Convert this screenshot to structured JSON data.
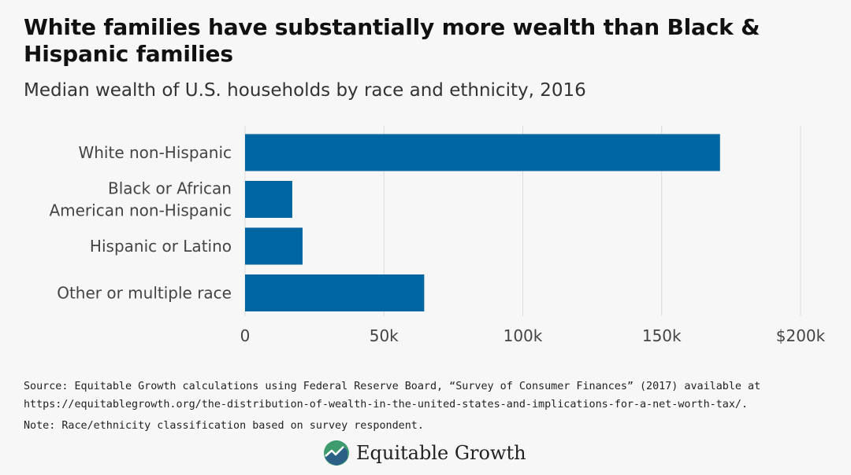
{
  "header": {
    "title": "White families have substantially more wealth than Black & Hispanic families",
    "subtitle": "Median wealth of U.S. households by race and ethnicity, 2016"
  },
  "chart_data": {
    "type": "bar",
    "orientation": "horizontal",
    "categories": [
      [
        "White non-Hispanic"
      ],
      [
        "Black or African",
        "American non-Hispanic"
      ],
      [
        "Hispanic or Latino"
      ],
      [
        "Other or multiple race"
      ]
    ],
    "values": [
      171000,
      17000,
      20700,
      64500
    ],
    "xlim": [
      0,
      200000
    ],
    "xticks": [
      0,
      50000,
      100000,
      150000,
      200000
    ],
    "xtick_labels": [
      "0",
      "50k",
      "100k",
      "150k",
      "$200k"
    ],
    "bar_color": "#0066a1",
    "grid": "vertical"
  },
  "footer": {
    "source_line1": "Source: Equitable Growth calculations using Federal Reserve Board, “Survey of Consumer Finances” (2017) available at",
    "source_line2": "https://equitablegrowth.org/the-distribution-of-wealth-in-the-united-states-and-implications-for-a-net-worth-tax/.",
    "note": "Note: Race/ethnicity classification based on survey respondent.",
    "logo_text": "Equitable Growth",
    "logo_icon": "growth-chart-icon"
  }
}
